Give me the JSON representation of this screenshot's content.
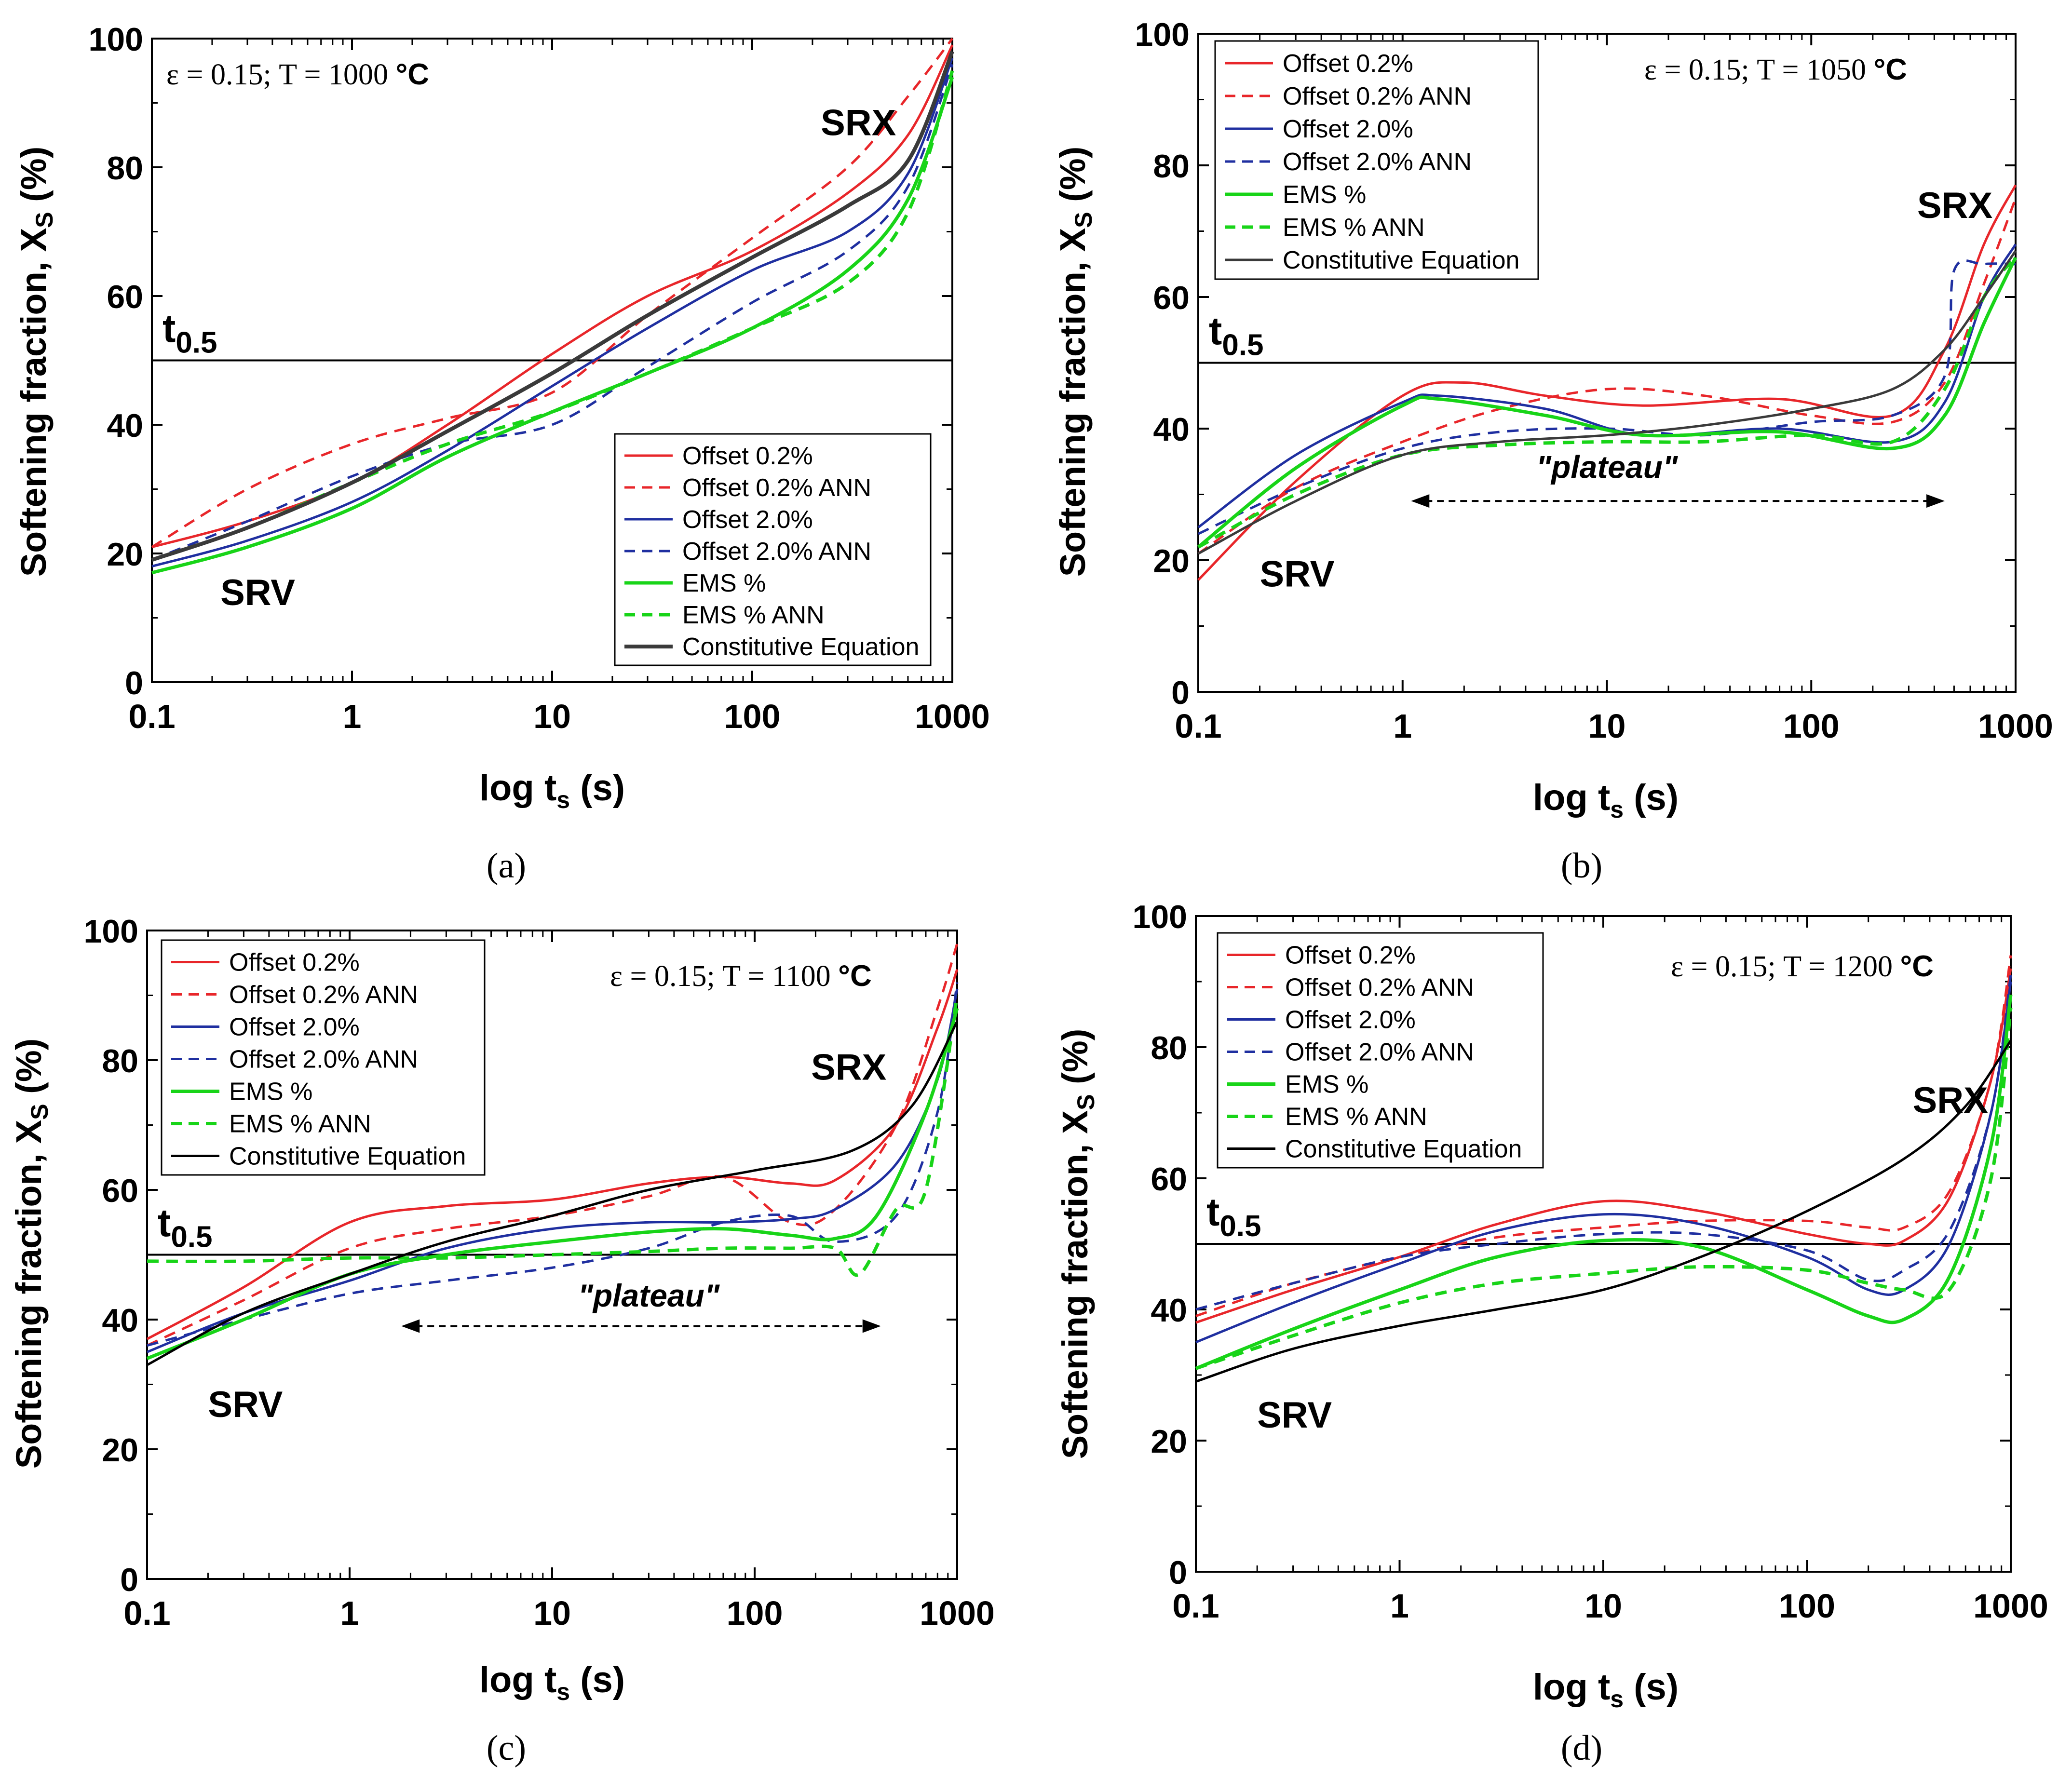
{
  "figure": {
    "captions": [
      "(a)",
      "(b)",
      "(c)",
      "(d)"
    ]
  },
  "common": {
    "y_axis_label_main": "Softening fraction, X",
    "y_axis_label_sub": "S",
    "y_axis_label_tail": " (%)",
    "x_axis_label_main": "log t",
    "x_axis_label_sub": "s",
    "x_axis_label_tail": " (s)",
    "t05_main": "t",
    "t05_sub": "0.5",
    "srv_label": "SRV",
    "srx_label": "SRX",
    "plateau_label": "\"plateau\""
  },
  "colors": {
    "red": "#e8262a",
    "blue": "#1f2fa0",
    "green": "#18d418",
    "black": "#000000",
    "darkgray": "#3a3a3a"
  },
  "chart_data": [
    {
      "panel": "a",
      "type": "line",
      "title": "ε = 0.15; T = 1000 °C",
      "title_parts": {
        "prefix": "ε = 0.15; T = 1000 ",
        "unit": "°C"
      },
      "xlabel": "log ts (s)",
      "ylabel": "Softening fraction, XS (%)",
      "xscale": "log",
      "xlim": [
        0.1,
        1000
      ],
      "ylim": [
        0,
        100
      ],
      "xticks": [
        "0.1",
        "1",
        "10",
        "100",
        "1000"
      ],
      "yticks": [
        "0",
        "20",
        "40",
        "60",
        "80",
        "100"
      ],
      "reference_line_y": 50,
      "legend_position": "bottom-right",
      "series": [
        {
          "name": "Offset 0.2%",
          "color": "red",
          "dash": false,
          "x": [
            0.1,
            0.3,
            1,
            3,
            10,
            30,
            100,
            300,
            600,
            1000
          ],
          "y": [
            21,
            25,
            31,
            40,
            51,
            60,
            67,
            76,
            85,
            99
          ]
        },
        {
          "name": "Offset 0.2% ANN",
          "color": "red",
          "dash": true,
          "x": [
            0.1,
            0.3,
            1,
            3,
            10,
            30,
            100,
            300,
            600,
            1000
          ],
          "y": [
            21,
            30,
            37,
            41,
            45,
            57,
            69,
            80,
            91,
            100
          ]
        },
        {
          "name": "Offset 2.0%",
          "color": "blue",
          "dash": false,
          "x": [
            0.1,
            0.3,
            1,
            3,
            10,
            30,
            100,
            300,
            600,
            1000
          ],
          "y": [
            18,
            22,
            28,
            36,
            46,
            55,
            64,
            70,
            79,
            97
          ]
        },
        {
          "name": "Offset 2.0% ANN",
          "color": "blue",
          "dash": true,
          "x": [
            0.1,
            0.3,
            1,
            3,
            10,
            30,
            100,
            300,
            600,
            1000
          ],
          "y": [
            19,
            25,
            32,
            37,
            40,
            49,
            59,
            67,
            77,
            96
          ]
        },
        {
          "name": "EMS %",
          "color": "green",
          "dash": false,
          "x": [
            0.1,
            0.3,
            1,
            3,
            10,
            30,
            100,
            300,
            600,
            1000
          ],
          "y": [
            17,
            21,
            27,
            35,
            42,
            48,
            55,
            64,
            75,
            94
          ]
        },
        {
          "name": "EMS % ANN",
          "color": "green",
          "dash": true,
          "x": [
            0.1,
            0.3,
            1,
            3,
            10,
            30,
            100,
            300,
            600,
            1000
          ],
          "y": [
            19,
            24,
            31,
            37,
            42,
            48,
            55,
            62,
            73,
            95
          ]
        },
        {
          "name": "Constitutive Equation",
          "color": "darkgray",
          "dash": false,
          "width": 8,
          "x": [
            0.1,
            0.3,
            1,
            3,
            10,
            30,
            100,
            300,
            600,
            1000
          ],
          "y": [
            19,
            24,
            31,
            39,
            48,
            57,
            66,
            74,
            81,
            98
          ]
        }
      ],
      "annotations": {
        "srv": {
          "x": 0.22,
          "y": 12
        },
        "srx": {
          "x": 220,
          "y": 85
        },
        "plateau": null
      }
    },
    {
      "panel": "b",
      "type": "line",
      "title": "ε = 0.15; T = 1050 °C",
      "title_parts": {
        "prefix": "ε = 0.15; T = 1050 ",
        "unit": "°C"
      },
      "xlabel": "log ts (s)",
      "ylabel": "Softening fraction, XS (%)",
      "xscale": "log",
      "xlim": [
        0.1,
        1000
      ],
      "ylim": [
        0,
        100
      ],
      "xticks": [
        "0.1",
        "1",
        "10",
        "100",
        "1000"
      ],
      "yticks": [
        "0",
        "20",
        "40",
        "60",
        "80",
        "100"
      ],
      "reference_line_y": 50,
      "legend_position": "top-left",
      "series": [
        {
          "name": "Offset 0.2%",
          "color": "red",
          "dash": false,
          "x": [
            0.1,
            0.3,
            1,
            2,
            5,
            15,
            70,
            250,
            450,
            700,
            1000
          ],
          "y": [
            17,
            32,
            45,
            47,
            45,
            43.5,
            44.5,
            42,
            52,
            68,
            77
          ]
        },
        {
          "name": "Offset 0.2% ANN",
          "color": "red",
          "dash": true,
          "x": [
            0.1,
            0.3,
            1,
            3,
            10,
            30,
            100,
            250,
            450,
            700,
            1000
          ],
          "y": [
            21,
            31,
            38,
            43,
            46,
            45,
            42,
            41,
            47,
            62,
            75
          ]
        },
        {
          "name": "Offset 2.0%",
          "color": "blue",
          "dash": false,
          "x": [
            0.1,
            0.3,
            1,
            1.5,
            5,
            15,
            70,
            250,
            450,
            700,
            1000
          ],
          "y": [
            25,
            36,
            44,
            45,
            43,
            39,
            40,
            38,
            44,
            60,
            68
          ]
        },
        {
          "name": "Offset 2.0% ANN",
          "color": "blue",
          "dash": true,
          "x": [
            0.1,
            0.3,
            1,
            3,
            10,
            30,
            100,
            250,
            450,
            500,
            700,
            1000
          ],
          "y": [
            24,
            31,
            37,
            39.5,
            40,
            39,
            41,
            42,
            48,
            64,
            65,
            65
          ]
        },
        {
          "name": "EMS %",
          "color": "green",
          "dash": false,
          "x": [
            0.1,
            0.3,
            1,
            1.5,
            5,
            15,
            70,
            250,
            450,
            700,
            1000
          ],
          "y": [
            22,
            34,
            43.5,
            44.5,
            42,
            39,
            39.5,
            37,
            42,
            56,
            66
          ]
        },
        {
          "name": "EMS % ANN",
          "color": "green",
          "dash": true,
          "x": [
            0.1,
            0.3,
            1,
            3,
            10,
            30,
            100,
            250,
            450,
            700,
            1000
          ],
          "y": [
            22,
            30,
            36,
            37.5,
            38,
            38,
            39,
            38,
            46,
            60,
            66
          ]
        },
        {
          "name": "Constitutive Equation",
          "color": "darkgray",
          "dash": false,
          "x": [
            0.1,
            0.3,
            1,
            3,
            10,
            30,
            100,
            250,
            450,
            700,
            1000
          ],
          "y": [
            21,
            29,
            36,
            38,
            39,
            40.5,
            43,
            46,
            52,
            60,
            67
          ]
        }
      ],
      "annotations": {
        "srv": {
          "x": 0.2,
          "y": 16
        },
        "srx": {
          "x": 330,
          "y": 72
        },
        "plateau": {
          "text_x": 10,
          "text_y": 32.5,
          "arrow_y": 29,
          "arrow_from": 1.1,
          "arrow_to": 450
        }
      }
    },
    {
      "panel": "c",
      "type": "line",
      "title": "ε = 0.15; T = 1100 °C",
      "title_parts": {
        "prefix": "ε = 0.15; T = 1100 ",
        "unit": "°C"
      },
      "xlabel": "log ts (s)",
      "ylabel": "Softening fraction, XS (%)",
      "xscale": "log",
      "xlim": [
        0.1,
        1000
      ],
      "ylim": [
        0,
        100
      ],
      "xticks": [
        "0.1",
        "1",
        "10",
        "100",
        "1000"
      ],
      "yticks": [
        "0",
        "20",
        "40",
        "60",
        "80",
        "100"
      ],
      "reference_line_y": 50,
      "legend_position": "top-left",
      "series": [
        {
          "name": "Offset 0.2%",
          "color": "red",
          "dash": false,
          "x": [
            0.1,
            0.3,
            1,
            3,
            10,
            30,
            70,
            150,
            250,
            500,
            800,
            1000
          ],
          "y": [
            37,
            45,
            55,
            57.5,
            58.5,
            61,
            62,
            61,
            61.5,
            70,
            85,
            94
          ]
        },
        {
          "name": "Offset 0.2% ANN",
          "color": "red",
          "dash": true,
          "x": [
            0.1,
            0.3,
            1,
            3,
            10,
            30,
            70,
            150,
            250,
            500,
            800,
            1000
          ],
          "y": [
            36,
            43,
            51,
            54,
            56,
            59,
            62,
            55,
            57,
            70,
            88,
            98
          ]
        },
        {
          "name": "Offset 2.0%",
          "color": "blue",
          "dash": false,
          "x": [
            0.1,
            0.3,
            1,
            3,
            10,
            30,
            70,
            150,
            250,
            500,
            800,
            1000
          ],
          "y": [
            35,
            41,
            46,
            51,
            54,
            55,
            55,
            55.5,
            57,
            64,
            77,
            91
          ]
        },
        {
          "name": "Offset 2.0% ANN",
          "color": "blue",
          "dash": true,
          "x": [
            0.1,
            0.3,
            1,
            3,
            10,
            30,
            70,
            150,
            250,
            500,
            800,
            1000
          ],
          "y": [
            36,
            40,
            44,
            46,
            48,
            51,
            55,
            56,
            52,
            56,
            72,
            92
          ]
        },
        {
          "name": "EMS %",
          "color": "green",
          "dash": false,
          "x": [
            0.1,
            0.3,
            1,
            3,
            10,
            30,
            70,
            150,
            250,
            400,
            700,
            1000
          ],
          "y": [
            34,
            40,
            47,
            50,
            52,
            53.5,
            54,
            53,
            52.5,
            56,
            72,
            88
          ]
        },
        {
          "name": "EMS % ANN",
          "color": "green",
          "dash": true,
          "x": [
            0.1,
            0.3,
            1,
            3,
            10,
            30,
            70,
            150,
            250,
            330,
            500,
            700,
            1000
          ],
          "y": [
            49,
            49,
            49.5,
            49.5,
            50,
            50.5,
            51,
            51,
            51,
            47,
            57,
            60,
            90
          ]
        },
        {
          "name": "Constitutive Equation",
          "color": "black",
          "dash": false,
          "x": [
            0.1,
            0.3,
            1,
            3,
            10,
            30,
            100,
            300,
            600,
            1000
          ],
          "y": [
            33,
            41,
            47,
            52,
            56,
            60,
            63,
            66,
            73,
            86
          ]
        }
      ],
      "annotations": {
        "srv": {
          "x": 0.2,
          "y": 25
        },
        "srx": {
          "x": 190,
          "y": 77
        },
        "plateau": {
          "text_x": 30,
          "text_y": 42,
          "arrow_y": 39,
          "arrow_from": 1.8,
          "arrow_to": 420
        }
      }
    },
    {
      "panel": "d",
      "type": "line",
      "title": "ε = 0.15; T = 1200 °C",
      "title_parts": {
        "prefix": "ε = 0.15; T = 1200 ",
        "unit": "°C"
      },
      "xlabel": "log ts (s)",
      "ylabel": "Softening fraction, XS (%)",
      "xscale": "log",
      "xlim": [
        0.1,
        1000
      ],
      "ylim": [
        0,
        100
      ],
      "xticks": [
        "0.1",
        "1",
        "10",
        "100",
        "1000"
      ],
      "yticks": [
        "0",
        "20",
        "40",
        "60",
        "80",
        "100"
      ],
      "reference_line_y": 50,
      "legend_position": "top-left",
      "series": [
        {
          "name": "Offset 0.2%",
          "color": "red",
          "dash": false,
          "x": [
            0.1,
            0.3,
            1,
            3,
            10,
            30,
            100,
            200,
            300,
            500,
            800,
            1000
          ],
          "y": [
            38,
            43,
            48,
            53,
            56.5,
            55,
            51.5,
            50,
            50.5,
            57,
            75,
            92
          ]
        },
        {
          "name": "Offset 0.2% ANN",
          "color": "red",
          "dash": true,
          "x": [
            0.1,
            0.3,
            1,
            3,
            10,
            30,
            100,
            200,
            300,
            500,
            800,
            1000
          ],
          "y": [
            39,
            44,
            48,
            51,
            52.5,
            53.5,
            53.5,
            52.5,
            52.5,
            58,
            75,
            94
          ]
        },
        {
          "name": "Offset 2.0%",
          "color": "blue",
          "dash": false,
          "x": [
            0.1,
            0.3,
            1,
            3,
            10,
            30,
            100,
            200,
            300,
            500,
            800,
            1000
          ],
          "y": [
            35,
            41,
            47,
            52,
            54.5,
            53,
            48,
            43,
            43,
            50,
            70,
            90
          ]
        },
        {
          "name": "Offset 2.0% ANN",
          "color": "blue",
          "dash": true,
          "x": [
            0.1,
            0.3,
            1,
            3,
            10,
            30,
            100,
            200,
            300,
            500,
            800,
            1000
          ],
          "y": [
            40,
            44,
            48,
            50,
            51.5,
            51.5,
            49,
            44.5,
            46,
            52,
            70,
            91
          ]
        },
        {
          "name": "EMS %",
          "color": "green",
          "dash": false,
          "x": [
            0.1,
            0.3,
            1,
            3,
            10,
            30,
            100,
            200,
            300,
            500,
            800,
            1000
          ],
          "y": [
            31,
            37,
            43,
            48,
            50.5,
            49.5,
            43,
            39,
            38.5,
            45,
            65,
            88
          ]
        },
        {
          "name": "EMS % ANN",
          "color": "green",
          "dash": true,
          "x": [
            0.1,
            0.3,
            1,
            3,
            10,
            30,
            100,
            200,
            300,
            500,
            800,
            1000
          ],
          "y": [
            31,
            36,
            41,
            44,
            45.5,
            46.5,
            46,
            44,
            43,
            43,
            60,
            86
          ]
        },
        {
          "name": "Constitutive Equation",
          "color": "black",
          "dash": false,
          "x": [
            0.1,
            0.3,
            1,
            3,
            10,
            30,
            100,
            300,
            600,
            1000
          ],
          "y": [
            29,
            34,
            37.5,
            40,
            43,
            48,
            55,
            63,
            71,
            81
          ]
        }
      ],
      "annotations": {
        "srv": {
          "x": 0.2,
          "y": 22
        },
        "srx": {
          "x": 330,
          "y": 70
        },
        "plateau": null
      }
    }
  ]
}
